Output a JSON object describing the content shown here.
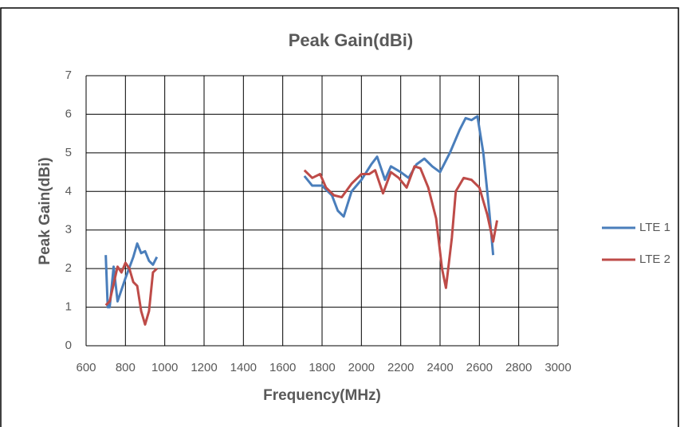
{
  "chart_data": {
    "type": "line",
    "title": "Peak Gain(dBi)",
    "x_label": "Frequency(MHz)",
    "y_label": "Peak Gain(dBi)",
    "xlim": [
      600,
      3000
    ],
    "xticks": [
      600,
      800,
      1000,
      1200,
      1400,
      1600,
      1800,
      2000,
      2200,
      2400,
      2600,
      2800,
      3000
    ],
    "ylim": [
      0,
      7
    ],
    "yticks": [
      0,
      1,
      2,
      3,
      4,
      5,
      6,
      7
    ],
    "grid": true,
    "legend": "right",
    "series": [
      {
        "name": "LTE 1",
        "color": "#4a7ebb",
        "x": [
          700,
          710,
          720,
          740,
          760,
          800,
          840,
          860,
          880,
          900,
          920,
          940,
          960,
          1300,
          1710,
          1750,
          1800,
          1850,
          1880,
          1910,
          1950,
          2000,
          2050,
          2080,
          2120,
          2150,
          2200,
          2240,
          2280,
          2320,
          2360,
          2400,
          2450,
          2500,
          2530,
          2560,
          2590,
          2620,
          2650,
          2670
        ],
        "values": [
          2.35,
          1.0,
          1.0,
          2.05,
          1.15,
          1.75,
          2.3,
          2.65,
          2.4,
          2.45,
          2.2,
          2.1,
          2.3,
          null,
          4.4,
          4.15,
          4.15,
          3.9,
          3.5,
          3.35,
          4.0,
          4.3,
          4.7,
          4.9,
          4.3,
          4.65,
          4.5,
          4.35,
          4.7,
          4.85,
          4.65,
          4.5,
          5.0,
          5.6,
          5.9,
          5.85,
          5.95,
          5.0,
          3.5,
          2.35
        ]
      },
      {
        "name": "LTE 2",
        "color": "#be4b48",
        "x": [
          700,
          720,
          740,
          760,
          780,
          800,
          820,
          840,
          860,
          880,
          900,
          920,
          940,
          960,
          1300,
          1710,
          1750,
          1790,
          1820,
          1860,
          1900,
          1950,
          2000,
          2040,
          2070,
          2110,
          2150,
          2190,
          2230,
          2270,
          2300,
          2340,
          2380,
          2410,
          2430,
          2460,
          2480,
          2520,
          2560,
          2600,
          2640,
          2670,
          2690
        ],
        "values": [
          1.05,
          1.15,
          1.6,
          2.05,
          1.9,
          2.15,
          2.0,
          1.65,
          1.55,
          0.9,
          0.55,
          0.9,
          1.9,
          2.0,
          null,
          4.55,
          4.35,
          4.45,
          4.1,
          3.9,
          3.85,
          4.2,
          4.45,
          4.45,
          4.55,
          3.95,
          4.5,
          4.35,
          4.1,
          4.65,
          4.6,
          4.1,
          3.3,
          2.0,
          1.5,
          2.8,
          4.0,
          4.35,
          4.3,
          4.1,
          3.4,
          2.7,
          3.25
        ]
      }
    ]
  }
}
